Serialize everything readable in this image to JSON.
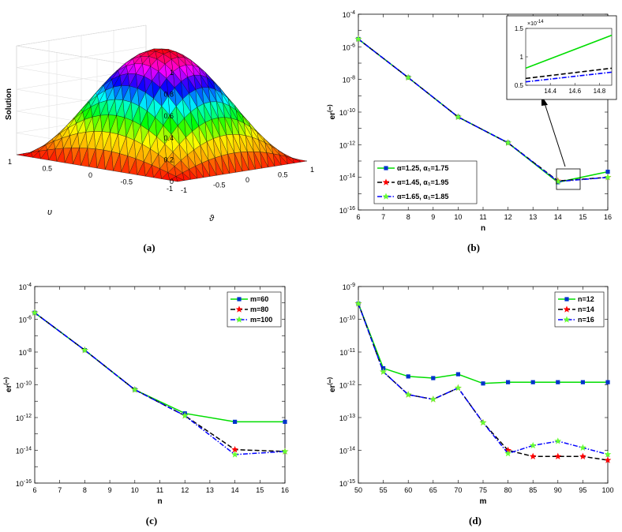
{
  "panel_labels": [
    "(a)",
    "(b)",
    "(c)",
    "(d)"
  ],
  "chart_data": [
    {
      "type": "surface",
      "zlabel": "Solution",
      "xlabel": "ϑ",
      "ylabel": "υ",
      "x_ticks": [
        "-1",
        "-0.5",
        "0",
        "0.5",
        "1"
      ],
      "y_ticks": [
        "-1",
        "-0.5",
        "0",
        "0.5",
        "1"
      ],
      "z_ticks": [
        "0",
        "0.2",
        "0.4",
        "0.6",
        "0.8",
        "1"
      ],
      "zlim": [
        0,
        1
      ],
      "colormap": [
        "#ff0000",
        "#ffa000",
        "#ffff00",
        "#00ff00",
        "#00ffff",
        "#0000ff",
        "#ff00ff",
        "#ff0000"
      ]
    },
    {
      "type": "line",
      "ylog": true,
      "xlabel": "n",
      "ylabel": "er",
      "ylabel_sup": "(∞)",
      "xlim": [
        6,
        16
      ],
      "ylim_exp": [
        -16,
        -4
      ],
      "x_ticks": [
        6,
        7,
        8,
        9,
        10,
        11,
        12,
        13,
        14,
        15,
        16
      ],
      "y_ticks_exp": [
        -16,
        -14,
        -12,
        -10,
        -8,
        -6,
        -4
      ],
      "legend_position": "bottom-left",
      "series": [
        {
          "label": "α=1.25, α₁=1.75",
          "color": "#00dd00",
          "dash": "",
          "marker": "square",
          "marker_color": "#0033cc",
          "x": [
            6,
            8,
            10,
            12,
            14,
            16
          ],
          "y": [
            3e-06,
            1.3e-08,
            5e-11,
            1.3e-12,
            5e-15,
            2.2e-14
          ]
        },
        {
          "label": "α=1.45, α₁=1.95",
          "color": "#000000",
          "dash": "6,3",
          "marker": "star",
          "marker_color": "#ff0000",
          "x": [
            6,
            8,
            10,
            12,
            14,
            16
          ],
          "y": [
            3e-06,
            1.3e-08,
            5e-11,
            1.3e-12,
            6e-15,
            1e-14
          ]
        },
        {
          "label": "α=1.65, α₁=1.85",
          "color": "#0000ff",
          "dash": "6,2,1.5,2",
          "marker": "star",
          "marker_color": "#66ff33",
          "x": [
            6,
            8,
            10,
            12,
            14,
            16
          ],
          "y": [
            3e-06,
            1.3e-08,
            5e-11,
            1.3e-12,
            5.5e-15,
            1e-14
          ]
        }
      ],
      "inset": {
        "x_ticks": [
          "14.4",
          "14.6",
          "14.8"
        ],
        "y_ticks": [
          "0.5",
          "1",
          "1.5"
        ],
        "y_multiplier": "×10",
        "y_multiplier_exp": "-14",
        "xlim": [
          14.2,
          14.9
        ],
        "ylim": [
          0.5,
          1.5
        ],
        "series_values": [
          [
            0.8,
            1.38
          ],
          [
            0.62,
            0.8
          ],
          [
            0.56,
            0.73
          ]
        ]
      }
    },
    {
      "type": "line",
      "ylog": true,
      "xlabel": "n",
      "ylabel": "er",
      "ylabel_sup": "(∞)",
      "xlim": [
        6,
        16
      ],
      "ylim_exp": [
        -16,
        -4
      ],
      "x_ticks": [
        6,
        7,
        8,
        9,
        10,
        11,
        12,
        13,
        14,
        15,
        16
      ],
      "y_ticks_exp": [
        -16,
        -14,
        -12,
        -10,
        -8,
        -6,
        -4
      ],
      "legend_position": "top-right",
      "series": [
        {
          "label": "m=60",
          "color": "#00dd00",
          "dash": "",
          "marker": "square",
          "marker_color": "#0033cc",
          "x": [
            6,
            8,
            10,
            12,
            14,
            16
          ],
          "y": [
            2.5e-06,
            1.3e-08,
            5e-11,
            1.8e-12,
            5.5e-13,
            5.5e-13
          ]
        },
        {
          "label": "m=80",
          "color": "#000000",
          "dash": "6,3",
          "marker": "star",
          "marker_color": "#ff0000",
          "x": [
            6,
            8,
            10,
            12,
            14,
            16
          ],
          "y": [
            2.5e-06,
            1.3e-08,
            5e-11,
            1.3e-12,
            1.1e-14,
            8.5e-15
          ]
        },
        {
          "label": "m=100",
          "color": "#0000ff",
          "dash": "6,2,1.5,2",
          "marker": "star",
          "marker_color": "#66ff33",
          "x": [
            6,
            8,
            10,
            12,
            14,
            16
          ],
          "y": [
            2.5e-06,
            1.3e-08,
            5e-11,
            1.3e-12,
            5.5e-15,
            8.5e-15
          ]
        }
      ]
    },
    {
      "type": "line",
      "ylog": true,
      "xlabel": "m",
      "ylabel": "er",
      "ylabel_sup": "(∞)",
      "xlim": [
        50,
        100
      ],
      "ylim_exp": [
        -15,
        -9
      ],
      "x_ticks": [
        50,
        55,
        60,
        65,
        70,
        75,
        80,
        85,
        90,
        95,
        100
      ],
      "y_ticks_exp": [
        -15,
        -14,
        -13,
        -12,
        -11,
        -10,
        -9
      ],
      "legend_position": "top-right",
      "series": [
        {
          "label": "n=12",
          "color": "#00dd00",
          "dash": "",
          "marker": "square",
          "marker_color": "#0033cc",
          "x": [
            50,
            55,
            60,
            65,
            70,
            75,
            80,
            85,
            90,
            95,
            100
          ],
          "y": [
            3e-10,
            3.2e-12,
            1.8e-12,
            1.6e-12,
            2.1e-12,
            1.1e-12,
            1.2e-12,
            1.2e-12,
            1.2e-12,
            1.2e-12,
            1.2e-12
          ]
        },
        {
          "label": "n=14",
          "color": "#000000",
          "dash": "6,3",
          "marker": "star",
          "marker_color": "#ff0000",
          "x": [
            50,
            55,
            60,
            65,
            70,
            75,
            80,
            85,
            90,
            95,
            100
          ],
          "y": [
            3e-10,
            2.5e-12,
            5e-13,
            3.6e-13,
            8e-13,
            7e-14,
            1e-14,
            6.5e-15,
            6.5e-15,
            6.5e-15,
            5e-15
          ]
        },
        {
          "label": "n=16",
          "color": "#0000ff",
          "dash": "6,2,1.5,2",
          "marker": "star",
          "marker_color": "#66ff33",
          "x": [
            50,
            55,
            60,
            65,
            70,
            75,
            80,
            85,
            90,
            95,
            100
          ],
          "y": [
            3e-10,
            2.5e-12,
            5e-13,
            3.6e-13,
            8e-13,
            7e-14,
            8e-15,
            1.4e-14,
            1.9e-14,
            1.2e-14,
            7.5e-15
          ]
        }
      ]
    }
  ]
}
